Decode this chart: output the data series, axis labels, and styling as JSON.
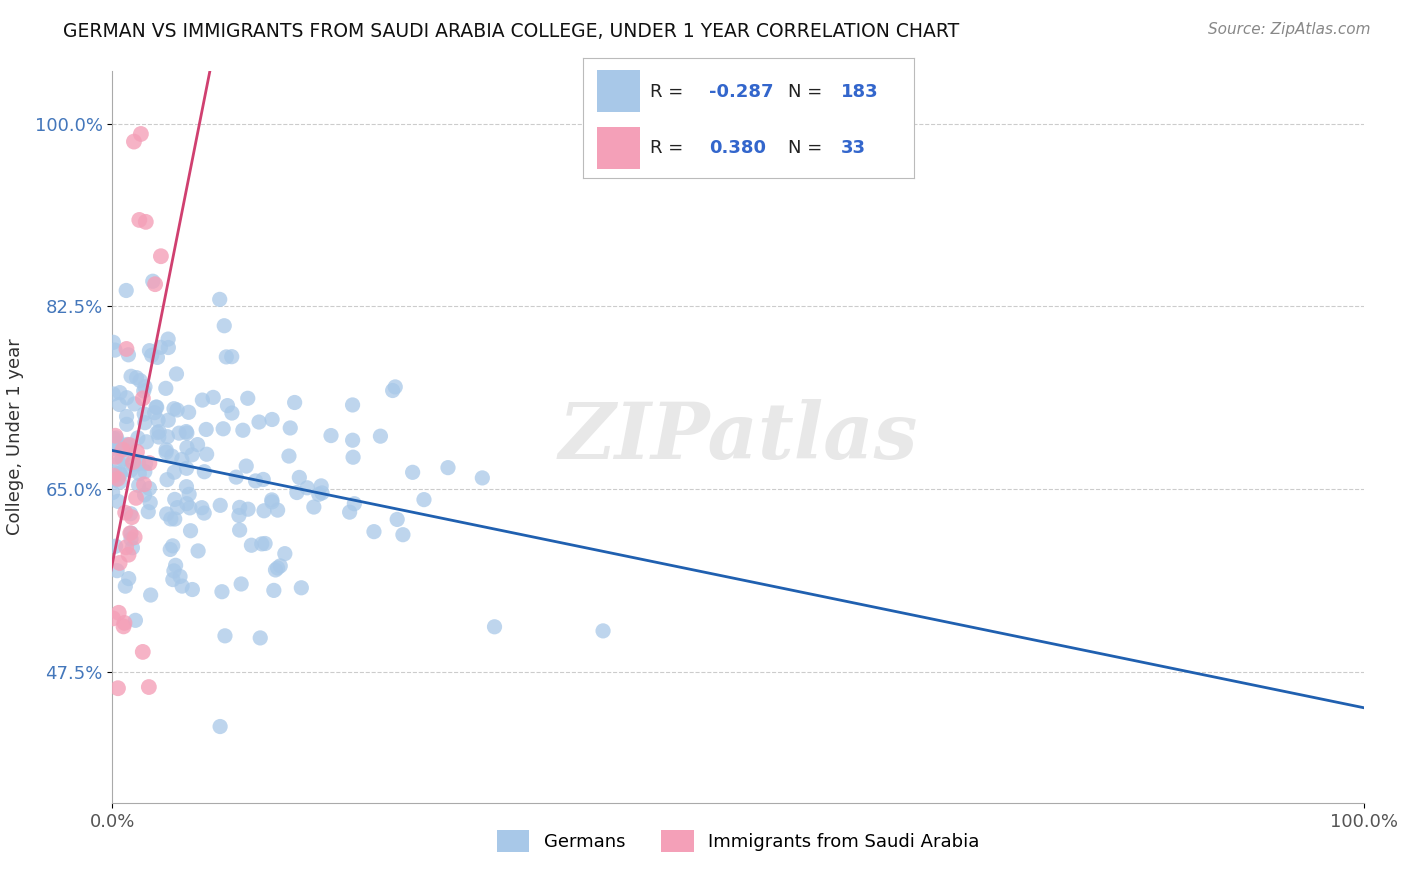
{
  "title": "GERMAN VS IMMIGRANTS FROM SAUDI ARABIA COLLEGE, UNDER 1 YEAR CORRELATION CHART",
  "source": "Source: ZipAtlas.com",
  "ylabel": "College, Under 1 year",
  "xlim": [
    0.0,
    1.0
  ],
  "ylim": [
    0.35,
    1.05
  ],
  "yticks": [
    0.475,
    0.65,
    0.825,
    1.0
  ],
  "ytick_labels": [
    "47.5%",
    "65.0%",
    "82.5%",
    "100.0%"
  ],
  "xticks": [
    0.0,
    1.0
  ],
  "xtick_labels": [
    "0.0%",
    "100.0%"
  ],
  "blue_color": "#a8c8e8",
  "pink_color": "#f4a0b8",
  "blue_line_color": "#2060b0",
  "pink_line_color": "#d04070",
  "watermark": "ZIPatlas",
  "background_color": "#ffffff",
  "grid_color": "#cccccc",
  "R_blue": -0.287,
  "N_blue": 183,
  "R_pink": 0.38,
  "N_pink": 33,
  "blue_label": "Germans",
  "pink_label": "Immigrants from Saudi Arabia"
}
